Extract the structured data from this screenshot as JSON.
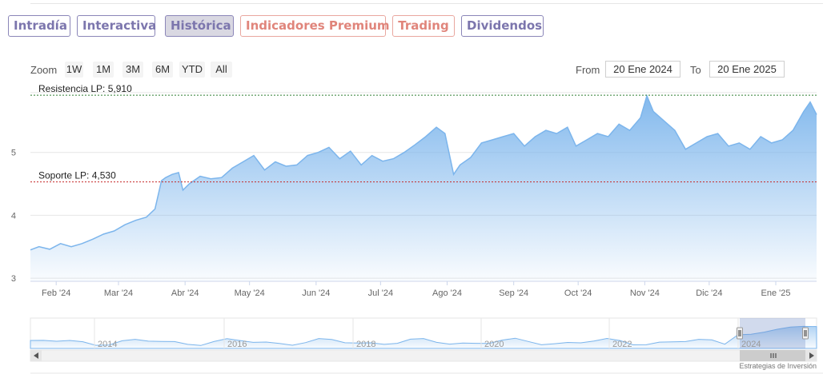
{
  "tabs": [
    {
      "label": "Intradía",
      "style": "purple"
    },
    {
      "label": "Interactiva",
      "style": "purple"
    },
    {
      "label": "Histórica",
      "style": "active"
    },
    {
      "label": "Indicadores Premium",
      "style": "red"
    },
    {
      "label": "Trading",
      "style": "red"
    },
    {
      "label": "Dividendos",
      "style": "purple"
    }
  ],
  "range_selector": {
    "zoom_label": "Zoom",
    "buttons": [
      "1W",
      "1M",
      "3M",
      "6M",
      "YTD",
      "All"
    ],
    "from_label": "From",
    "from_value": "20 Ene 2024",
    "to_label": "To",
    "to_value": "20 Ene 2025"
  },
  "credit": "Estrategias de Inversión",
  "colors": {
    "series": "#7cb5ec",
    "resistance": "#2e7d32",
    "support": "#c62828",
    "tab_purple": "#7c76ad",
    "tab_red": "#e0857b"
  },
  "chart_data": {
    "type": "area",
    "title": "",
    "xlabel": "",
    "ylabel": "",
    "ylim": [
      2.95,
      6.0
    ],
    "y_ticks": [
      3,
      4,
      5
    ],
    "x_tick_labels": [
      "Feb '24",
      "Mar '24",
      "Abr '24",
      "May '24",
      "Jun '24",
      "Jul '24",
      "Ago '24",
      "Sep '24",
      "Oct '24",
      "Nov '24",
      "Dic '24",
      "Ene '25"
    ],
    "grid": true,
    "legend": "none",
    "series": [
      {
        "x": [
          "2024-01-20",
          "2024-01-24",
          "2024-01-29",
          "2024-02-03",
          "2024-02-08",
          "2024-02-13",
          "2024-02-18",
          "2024-02-23",
          "2024-02-28",
          "2024-03-04",
          "2024-03-09",
          "2024-03-14",
          "2024-03-18",
          "2024-03-21",
          "2024-03-23",
          "2024-03-26",
          "2024-03-29",
          "2024-03-31",
          "2024-04-03",
          "2024-04-08",
          "2024-04-13",
          "2024-04-18",
          "2024-04-23",
          "2024-04-28",
          "2024-05-03",
          "2024-05-08",
          "2024-05-13",
          "2024-05-18",
          "2024-05-23",
          "2024-05-28",
          "2024-06-02",
          "2024-06-07",
          "2024-06-12",
          "2024-06-17",
          "2024-06-22",
          "2024-06-27",
          "2024-07-02",
          "2024-07-07",
          "2024-07-12",
          "2024-07-17",
          "2024-07-22",
          "2024-07-27",
          "2024-07-31",
          "2024-08-04",
          "2024-08-07",
          "2024-08-12",
          "2024-08-17",
          "2024-08-22",
          "2024-08-27",
          "2024-09-01",
          "2024-09-06",
          "2024-09-11",
          "2024-09-16",
          "2024-09-21",
          "2024-09-26",
          "2024-09-30",
          "2024-10-05",
          "2024-10-10",
          "2024-10-15",
          "2024-10-20",
          "2024-10-25",
          "2024-10-30",
          "2024-11-02",
          "2024-11-05",
          "2024-11-10",
          "2024-11-15",
          "2024-11-20",
          "2024-11-25",
          "2024-11-30",
          "2024-12-05",
          "2024-12-10",
          "2024-12-15",
          "2024-12-20",
          "2024-12-25",
          "2024-12-30",
          "2025-01-04",
          "2025-01-09",
          "2025-01-14",
          "2025-01-17",
          "2025-01-20"
        ],
        "y": [
          3.45,
          3.5,
          3.46,
          3.55,
          3.5,
          3.55,
          3.62,
          3.7,
          3.75,
          3.85,
          3.92,
          3.97,
          4.1,
          4.55,
          4.6,
          4.65,
          4.68,
          4.4,
          4.5,
          4.62,
          4.58,
          4.6,
          4.75,
          4.85,
          4.95,
          4.72,
          4.85,
          4.78,
          4.8,
          4.95,
          5.0,
          5.08,
          4.9,
          5.02,
          4.8,
          4.95,
          4.86,
          4.9,
          5.0,
          5.12,
          5.25,
          5.4,
          5.3,
          4.65,
          4.8,
          4.92,
          5.15,
          5.2,
          5.25,
          5.3,
          5.1,
          5.25,
          5.35,
          5.3,
          5.4,
          5.1,
          5.2,
          5.3,
          5.25,
          5.45,
          5.35,
          5.55,
          5.9,
          5.65,
          5.5,
          5.35,
          5.05,
          5.15,
          5.25,
          5.3,
          5.1,
          5.15,
          5.05,
          5.25,
          5.15,
          5.2,
          5.35,
          5.65,
          5.8,
          5.6
        ]
      }
    ],
    "plot_lines": [
      {
        "label": "Resistencia LP: 5,910",
        "value": 5.91
      },
      {
        "label": "Soporte LP: 4,530",
        "value": 4.53
      }
    ],
    "navigator": {
      "year_labels": [
        "2014",
        "2016",
        "2018",
        "2020",
        "2022",
        "2024"
      ]
    }
  }
}
